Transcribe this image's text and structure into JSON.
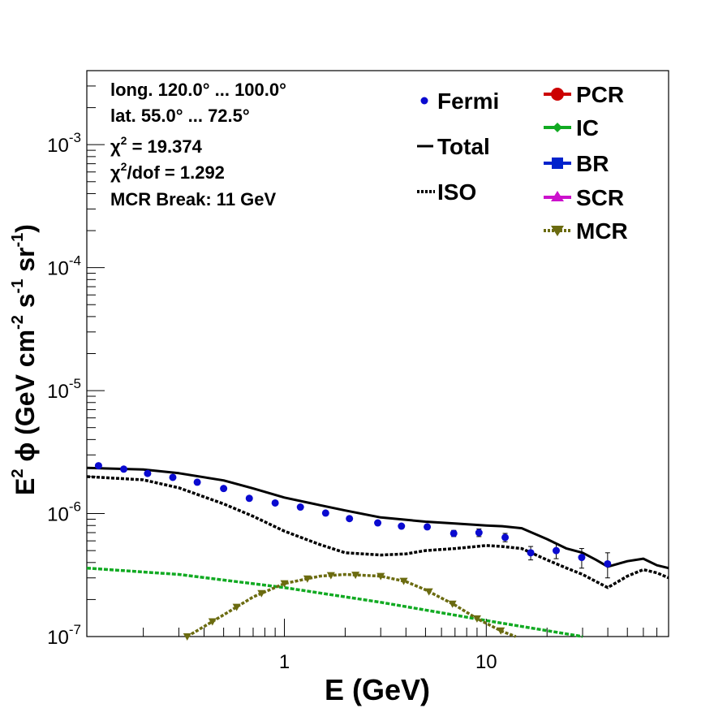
{
  "chart_data": {
    "type": "line",
    "xlabel": "E (GeV)",
    "ylabel": {
      "base": "E",
      "sup1": "2",
      "phi": "ϕ",
      "units": "(GeV cm",
      "sup2": "-2",
      "s": " s",
      "sup3": "-1",
      "sr": " sr",
      "sup4": "-1",
      "close": ")"
    },
    "x_scale": "log",
    "y_scale": "log",
    "xlim": [
      0.105,
      80
    ],
    "ylim": [
      1e-07,
      0.004
    ],
    "x_ticks": [
      {
        "value": 1,
        "label": "1"
      },
      {
        "value": 10,
        "label": "10"
      }
    ],
    "y_ticks": [
      {
        "value": 1e-07,
        "base": "10",
        "exp": "-7"
      },
      {
        "value": 1e-06,
        "base": "10",
        "exp": "-6"
      },
      {
        "value": 1e-05,
        "base": "10",
        "exp": "-5"
      },
      {
        "value": 0.0001,
        "base": "10",
        "exp": "-4"
      },
      {
        "value": 0.001,
        "base": "10",
        "exp": "-3"
      }
    ],
    "info": {
      "longitude": "long. 120.0° ... 100.0°",
      "latitude": "lat. 55.0° ... 72.5°",
      "chi2_sym": "χ",
      "chi2_sup": "2",
      "chi2_val": " = 19.374",
      "chi2dof_sym": "χ",
      "chi2dof_sup": "2",
      "chi2dof_val": "/dof = 1.292",
      "break": "MCR Break: 11 GeV"
    },
    "legend": {
      "fermi": "Fermi",
      "total": "Total",
      "iso": "ISO",
      "pcr": "PCR",
      "ic": "IC",
      "br": "BR",
      "scr": "SCR",
      "mcr": "MCR"
    },
    "colors": {
      "fermi": "#0a0ad0",
      "total": "#000000",
      "iso": "#000000",
      "pcr": "#cc0000",
      "ic": "#11aa22",
      "br": "#0022cc",
      "scr": "#cc11cc",
      "mcr": "#6b6b10"
    },
    "fermi_points": [
      {
        "x": 0.12,
        "y": 2.45e-06,
        "err": 0
      },
      {
        "x": 0.16,
        "y": 2.3e-06,
        "err": 0
      },
      {
        "x": 0.21,
        "y": 2.12e-06,
        "err": 0
      },
      {
        "x": 0.28,
        "y": 1.97e-06,
        "err": 0
      },
      {
        "x": 0.37,
        "y": 1.8e-06,
        "err": 0
      },
      {
        "x": 0.5,
        "y": 1.6e-06,
        "err": 0
      },
      {
        "x": 0.67,
        "y": 1.33e-06,
        "err": 0
      },
      {
        "x": 0.9,
        "y": 1.22e-06,
        "err": 0
      },
      {
        "x": 1.2,
        "y": 1.13e-06,
        "err": 0
      },
      {
        "x": 1.6,
        "y": 1.01e-06,
        "err": 0
      },
      {
        "x": 2.1,
        "y": 9.1e-07,
        "err": 0
      },
      {
        "x": 2.9,
        "y": 8.4e-07,
        "err": 0
      },
      {
        "x": 3.8,
        "y": 7.9e-07,
        "err": 0
      },
      {
        "x": 5.1,
        "y": 7.8e-07,
        "err": 0
      },
      {
        "x": 6.9,
        "y": 6.9e-07,
        "err": 4e-08
      },
      {
        "x": 9.2,
        "y": 7e-07,
        "err": 5e-08
      },
      {
        "x": 12.4,
        "y": 6.4e-07,
        "err": 5e-08
      },
      {
        "x": 16.6,
        "y": 4.8e-07,
        "err": 6e-08
      },
      {
        "x": 22.2,
        "y": 5e-07,
        "err": 7e-08
      },
      {
        "x": 29.7,
        "y": 4.4e-07,
        "err": 8e-08
      },
      {
        "x": 39.9,
        "y": 3.9e-07,
        "err": 9e-08
      }
    ],
    "series": [
      {
        "name": "Total",
        "style": "solid",
        "color": "#000000",
        "x": [
          0.105,
          0.2,
          0.3,
          0.5,
          0.7,
          1.0,
          1.5,
          2.0,
          3.0,
          5.0,
          7.0,
          10.0,
          12.0,
          15.0,
          20.0,
          25.0,
          30.0,
          35.0,
          40.0,
          50.0,
          60.0,
          70.0,
          80.0
        ],
        "y": [
          2.35e-06,
          2.28e-06,
          2.13e-06,
          1.86e-06,
          1.6e-06,
          1.35e-06,
          1.17e-06,
          1.06e-06,
          9.3e-07,
          8.6e-07,
          8.3e-07,
          8e-07,
          7.9e-07,
          7.6e-07,
          6.2e-07,
          5.2e-07,
          4.8e-07,
          4.2e-07,
          3.7e-07,
          4.1e-07,
          4.3e-07,
          3.8e-07,
          3.6e-07
        ]
      },
      {
        "name": "ISO",
        "style": "dotted",
        "color": "#000000",
        "x": [
          0.105,
          0.2,
          0.3,
          0.5,
          0.7,
          1.0,
          1.5,
          2.0,
          3.0,
          4.0,
          5.0,
          7.0,
          10.0,
          12.0,
          15.0,
          20.0,
          25.0,
          30.0,
          35.0,
          40.0,
          50.0,
          60.0,
          70.0,
          80.0
        ],
        "y": [
          2e-06,
          1.88e-06,
          1.62e-06,
          1.2e-06,
          9.5e-07,
          7.2e-07,
          5.6e-07,
          4.8e-07,
          4.6e-07,
          4.7e-07,
          5e-07,
          5.2e-07,
          5.5e-07,
          5.4e-07,
          5.2e-07,
          4.2e-07,
          3.6e-07,
          3.2e-07,
          2.8e-07,
          2.5e-07,
          3.1e-07,
          3.5e-07,
          3.3e-07,
          3e-07
        ]
      },
      {
        "name": "IC",
        "style": "dashed",
        "color": "#11aa22",
        "x": [
          0.105,
          0.3,
          1.0,
          3.0,
          10.0,
          30.0
        ],
        "y": [
          3.6e-07,
          3.2e-07,
          2.5e-07,
          1.9e-07,
          1.35e-07,
          1e-07
        ]
      },
      {
        "name": "MCR",
        "style": "dotted",
        "color": "#6b6b10",
        "x": [
          0.33,
          0.5,
          0.7,
          1.0,
          1.5,
          2.0,
          3.0,
          4.0,
          5.0,
          7.0,
          9.0,
          12.0,
          14.0
        ],
        "y": [
          1e-07,
          1.5e-07,
          2.1e-07,
          2.7e-07,
          3.1e-07,
          3.2e-07,
          3.1e-07,
          2.8e-07,
          2.4e-07,
          1.8e-07,
          1.4e-07,
          1.1e-07,
          1e-07
        ],
        "markers_x": [
          0.33,
          0.44,
          0.58,
          0.77,
          1.0,
          1.3,
          1.7,
          2.25,
          3.0,
          3.9,
          5.2,
          6.8,
          9.0,
          11.8
        ]
      }
    ]
  }
}
